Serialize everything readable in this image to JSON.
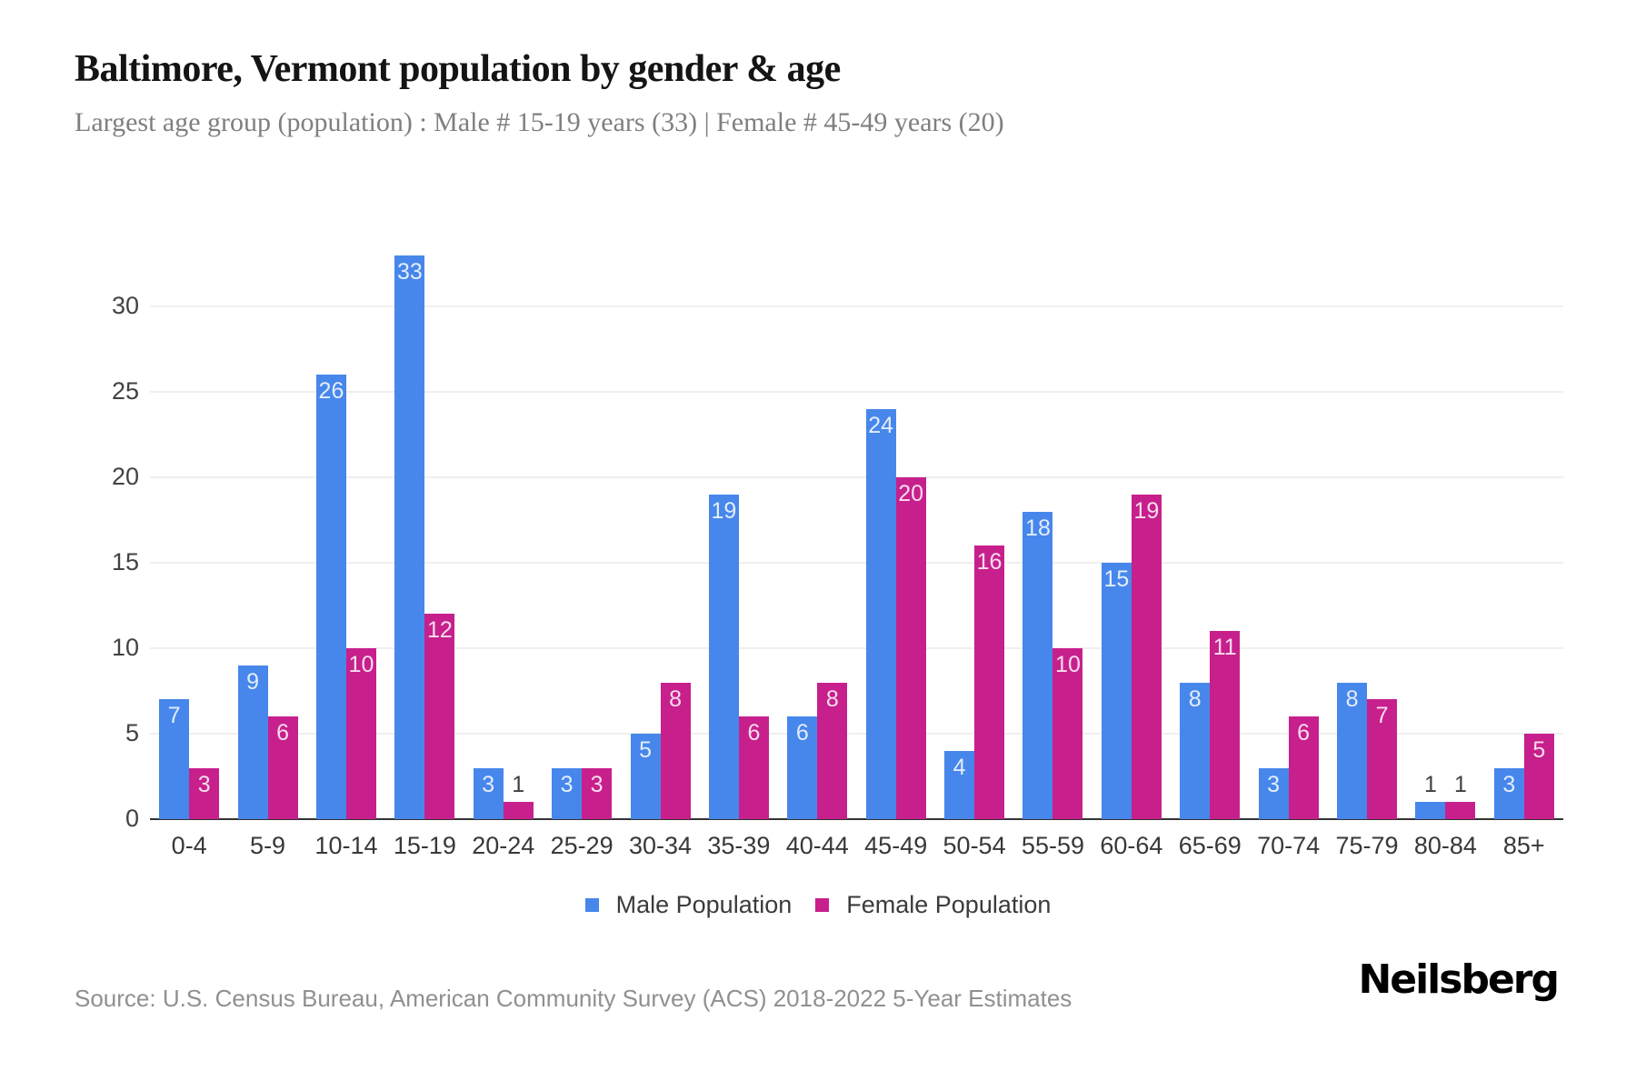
{
  "header": {
    "title": "Baltimore, Vermont population by gender & age",
    "subtitle": "Largest age group (population) : Male # 15-19 years (33) | Female # 45-49 years (20)"
  },
  "chart_data": {
    "type": "bar",
    "title": "Baltimore, Vermont population by gender & age",
    "categories": [
      "0-4",
      "5-9",
      "10-14",
      "15-19",
      "20-24",
      "25-29",
      "30-34",
      "35-39",
      "40-44",
      "45-49",
      "50-54",
      "55-59",
      "60-64",
      "65-69",
      "70-74",
      "75-79",
      "80-84",
      "85+"
    ],
    "series": [
      {
        "name": "Male Population",
        "color": "#4787EB",
        "values": [
          7,
          9,
          26,
          33,
          3,
          3,
          5,
          19,
          6,
          24,
          4,
          18,
          15,
          8,
          3,
          8,
          1,
          3
        ]
      },
      {
        "name": "Female Population",
        "color": "#C7208C",
        "values": [
          3,
          6,
          10,
          12,
          1,
          3,
          8,
          6,
          8,
          20,
          16,
          10,
          19,
          11,
          6,
          7,
          1,
          5
        ]
      }
    ],
    "ylim": [
      0,
      33
    ],
    "yticks": [
      0,
      5,
      10,
      15,
      20,
      25,
      30
    ],
    "grid": "horizontal",
    "legend_position": "bottom",
    "bar_labels": true,
    "xlabel": "",
    "ylabel": ""
  },
  "colors": {
    "male": "#4787EB",
    "female": "#C7208C",
    "gridline": "#efefef",
    "axis_line": "#333333",
    "bar_label_light": "rgba(255,255,255,0.85)",
    "bar_label_dark": "#3f3f3f"
  },
  "footer": {
    "source": "Source: U.S. Census Bureau, American Community Survey (ACS) 2018-2022 5-Year Estimates",
    "brand": "Neilsberg"
  }
}
